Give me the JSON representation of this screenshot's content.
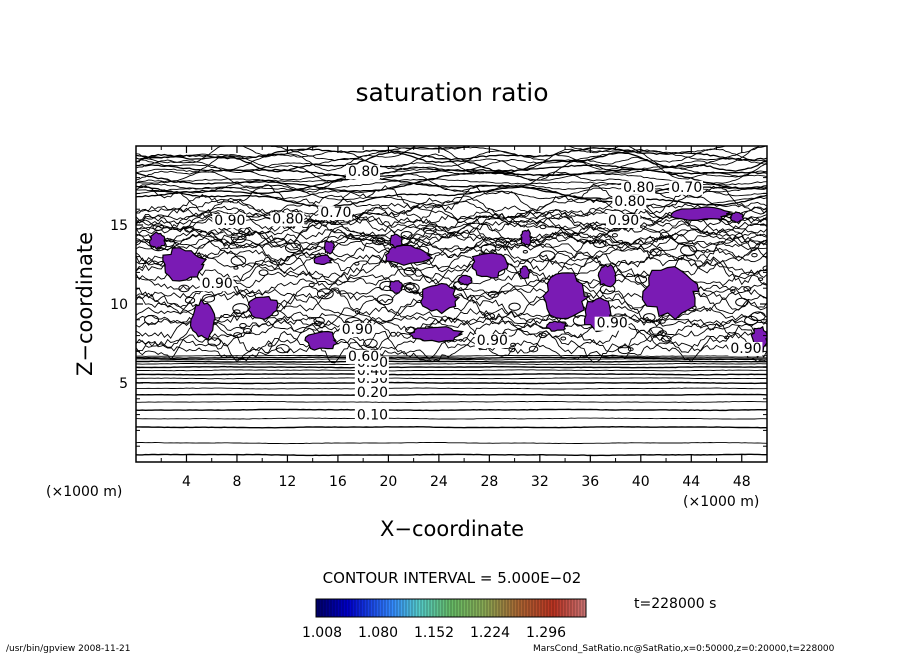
{
  "chart_data": {
    "type": "contour",
    "title": "saturation ratio",
    "xlabel": "X−coordinate",
    "ylabel": "Z−coordinate",
    "x_unit_left": "(×1000 m)",
    "x_unit_right": "(×1000 m)",
    "xlim": [
      0,
      50
    ],
    "ylim": [
      0,
      20
    ],
    "xticks": [
      "4",
      "8",
      "12",
      "16",
      "20",
      "24",
      "28",
      "32",
      "36",
      "40",
      "44",
      "48"
    ],
    "yticks": [
      "5",
      "10",
      "15"
    ],
    "contour_interval_text": "CONTOUR INTERVAL = 5.000E−02",
    "time_text": "t=228000 s",
    "colorbar_ticks": [
      "1.008",
      "1.080",
      "1.152",
      "1.224",
      "1.296"
    ],
    "colorbar_range": [
      1.008,
      1.296
    ],
    "contour_labels": [
      {
        "text": "0.10",
        "x": 17.5,
        "y": 2.7
      },
      {
        "text": "0.20",
        "x": 17.5,
        "y": 4.1
      },
      {
        "text": "0.30",
        "x": 17.5,
        "y": 5.0
      },
      {
        "text": "0.40",
        "x": 17.5,
        "y": 5.5
      },
      {
        "text": "0.50",
        "x": 17.5,
        "y": 6.0
      },
      {
        "text": "0.60",
        "x": 16.8,
        "y": 6.4
      },
      {
        "text": "0.90",
        "x": 16.3,
        "y": 8.1
      },
      {
        "text": "0.90",
        "x": 27.0,
        "y": 7.4
      },
      {
        "text": "0.90",
        "x": 36.5,
        "y": 8.5
      },
      {
        "text": "0.90",
        "x": 5.2,
        "y": 11.0
      },
      {
        "text": "0.90",
        "x": 6.2,
        "y": 15.0
      },
      {
        "text": "0.90",
        "x": 37.4,
        "y": 15.0
      },
      {
        "text": "0.80",
        "x": 10.8,
        "y": 15.1
      },
      {
        "text": "0.70",
        "x": 14.6,
        "y": 15.5
      },
      {
        "text": "0.80",
        "x": 16.8,
        "y": 18.1
      },
      {
        "text": "0.80",
        "x": 38.6,
        "y": 17.1
      },
      {
        "text": "0.70",
        "x": 42.4,
        "y": 17.1
      },
      {
        "text": "0.80",
        "x": 37.9,
        "y": 16.2
      },
      {
        "text": "0.90",
        "x": 47.1,
        "y": 6.9
      }
    ],
    "supersaturation_regions": [
      {
        "x": 3.7,
        "y": 12.5,
        "rx": 1.7,
        "ry": 1.0
      },
      {
        "x": 1.7,
        "y": 14.0,
        "rx": 0.6,
        "ry": 0.5
      },
      {
        "x": 10.0,
        "y": 9.8,
        "rx": 1.2,
        "ry": 0.7
      },
      {
        "x": 5.3,
        "y": 9.0,
        "rx": 0.9,
        "ry": 1.2
      },
      {
        "x": 14.7,
        "y": 7.7,
        "rx": 1.2,
        "ry": 0.6
      },
      {
        "x": 21.5,
        "y": 13.1,
        "rx": 1.8,
        "ry": 0.6
      },
      {
        "x": 20.6,
        "y": 14.0,
        "rx": 0.5,
        "ry": 0.4
      },
      {
        "x": 15.3,
        "y": 13.6,
        "rx": 0.4,
        "ry": 0.4
      },
      {
        "x": 14.8,
        "y": 12.8,
        "rx": 0.7,
        "ry": 0.3
      },
      {
        "x": 24.0,
        "y": 10.4,
        "rx": 1.4,
        "ry": 0.9
      },
      {
        "x": 28.0,
        "y": 12.5,
        "rx": 1.4,
        "ry": 0.8
      },
      {
        "x": 23.7,
        "y": 8.1,
        "rx": 2.1,
        "ry": 0.5
      },
      {
        "x": 34.0,
        "y": 10.5,
        "rx": 1.7,
        "ry": 1.5
      },
      {
        "x": 36.6,
        "y": 9.3,
        "rx": 1.1,
        "ry": 1.0
      },
      {
        "x": 37.3,
        "y": 11.8,
        "rx": 0.7,
        "ry": 0.7
      },
      {
        "x": 42.4,
        "y": 10.8,
        "rx": 2.1,
        "ry": 1.6
      },
      {
        "x": 44.8,
        "y": 15.7,
        "rx": 2.3,
        "ry": 0.4
      },
      {
        "x": 47.6,
        "y": 15.5,
        "rx": 0.5,
        "ry": 0.3
      },
      {
        "x": 49.4,
        "y": 7.8,
        "rx": 0.6,
        "ry": 0.8
      },
      {
        "x": 30.9,
        "y": 14.2,
        "rx": 0.4,
        "ry": 0.5
      },
      {
        "x": 30.8,
        "y": 12.0,
        "rx": 0.4,
        "ry": 0.4
      },
      {
        "x": 33.3,
        "y": 8.6,
        "rx": 0.8,
        "ry": 0.3
      },
      {
        "x": 20.6,
        "y": 11.1,
        "rx": 0.5,
        "ry": 0.4
      },
      {
        "x": 26.1,
        "y": 11.5,
        "rx": 0.5,
        "ry": 0.3
      }
    ]
  },
  "footer": {
    "left": "/usr/bin/gpview   2008-11-21",
    "right": "MarsCond_SatRatio.nc@SatRatio,x=0:50000,z=0:20000,t=228000"
  }
}
